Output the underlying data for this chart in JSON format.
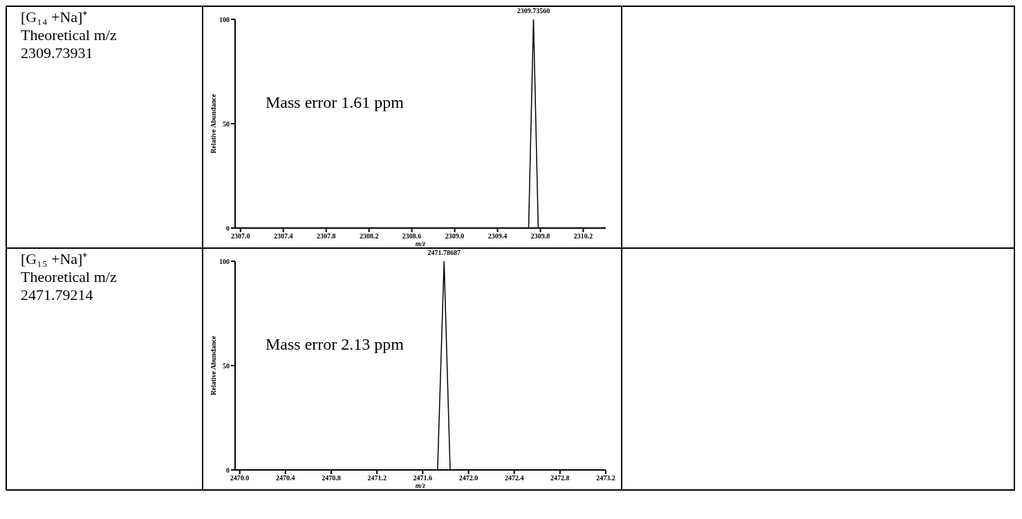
{
  "chart_data": [
    {
      "type": "line",
      "xlabel": "m/z",
      "ylabel": "Relative Abundance",
      "xlim": [
        2306.95,
        2310.41
      ],
      "ylim": [
        0,
        100
      ],
      "yticks": [
        0,
        50,
        100
      ],
      "xticks": [
        {
          "value": 2307,
          "label": "2307.0"
        },
        {
          "value": 2307.4,
          "label": "2307.4"
        },
        {
          "value": 2307.8,
          "label": "2307.8"
        },
        {
          "value": 2308.2,
          "label": "2308.2"
        },
        {
          "value": 2308.6,
          "label": "2308.6"
        },
        {
          "value": 2309,
          "label": "2309.0"
        },
        {
          "value": 2309.4,
          "label": "2309.4"
        },
        {
          "value": 2309.8,
          "label": "2309.8"
        },
        {
          "value": 2310.2,
          "label": "2310.2"
        }
      ],
      "series": [
        {
          "color": "#000000",
          "x": [
            2306.95,
            2309.69,
            2309.7356,
            2309.78,
            2310.41
          ],
          "values": [
            0,
            0,
            100,
            0,
            0
          ]
        }
      ],
      "marker": "none",
      "line_style": "solid",
      "grid": false,
      "legend": false,
      "annotations": [
        "[G₁₄ +Na]⁺",
        "Theoretical m/z",
        "2309.73931",
        "Mass error 1.61 ppm",
        {
          "text": "2309.73560",
          "x": 2309.7356,
          "y": 100
        }
      ]
    },
    {
      "type": "line",
      "xlabel": "m/z",
      "ylabel": "Relative Abundance",
      "xlim": [
        2469.96,
        2473.2
      ],
      "ylim": [
        0,
        100
      ],
      "yticks": [
        0,
        50,
        100
      ],
      "xticks": [
        {
          "value": 2470,
          "label": "2470.0"
        },
        {
          "value": 2470.4,
          "label": "2470.4"
        },
        {
          "value": 2470.8,
          "label": "2470.8"
        },
        {
          "value": 2471.2,
          "label": "2471.2"
        },
        {
          "value": 2471.6,
          "label": "2471.6"
        },
        {
          "value": 2472,
          "label": "2472.0"
        },
        {
          "value": 2472.4,
          "label": "2472.4"
        },
        {
          "value": 2472.8,
          "label": "2472.8"
        },
        {
          "value": 2473.2,
          "label": "2473.2"
        }
      ],
      "series": [
        {
          "color": "#000000",
          "x": [
            2469.96,
            2471.73,
            2471.78687,
            2471.84,
            2473.2
          ],
          "values": [
            0,
            0,
            100,
            0,
            0
          ]
        }
      ],
      "marker": "none",
      "line_style": "solid",
      "grid": false,
      "legend": false,
      "annotations": [
        "[G₁₅ +Na]⁺",
        "Theoretical m/z",
        "2471.79214",
        "Mass error 2.13 ppm",
        {
          "text": "2471.78687",
          "x": 2471.78687,
          "y": 100
        }
      ]
    }
  ]
}
